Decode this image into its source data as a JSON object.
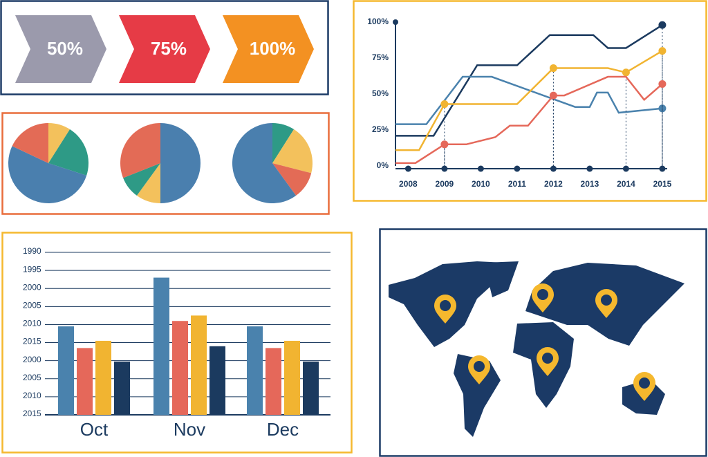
{
  "chart_data": [
    {
      "type": "chevron",
      "values": [
        50,
        75,
        100
      ],
      "value_labels": [
        "50%",
        "75%",
        "100%"
      ],
      "colors": [
        "#9b9aac",
        "#e63b46",
        "#f39122"
      ]
    },
    {
      "type": "pie",
      "values": [
        9,
        21,
        52,
        18
      ],
      "colors": [
        "#f3c15c",
        "#2e9a86",
        "#4a7fae",
        "#e36b56"
      ]
    },
    {
      "type": "pie",
      "values": [
        50,
        10,
        9,
        31
      ],
      "colors": [
        "#4a7fae",
        "#f3c15c",
        "#2e9a86",
        "#e36b56"
      ]
    },
    {
      "type": "pie",
      "values": [
        9,
        20,
        11,
        60
      ],
      "colors": [
        "#2e9a86",
        "#f3c15c",
        "#e36b56",
        "#4a7fae"
      ]
    },
    {
      "type": "line",
      "xlim": [
        2007.65,
        2015.23
      ],
      "xticks": [
        2008,
        2009,
        2010,
        2011,
        2012,
        2013,
        2014,
        2015
      ],
      "ylim": [
        0,
        100
      ],
      "yticks": [
        {
          "value": 0,
          "label": "0%"
        },
        {
          "value": 25,
          "label": "25%"
        },
        {
          "value": 50,
          "label": "50%"
        },
        {
          "value": 75,
          "label": "75%"
        },
        {
          "value": 100,
          "label": "100%"
        }
      ],
      "series": [
        {
          "color": "#1b3a5f",
          "x": [
            2007.65,
            2008.7,
            2009.9,
            2011,
            2011.9,
            2013.1,
            2013.5,
            2014,
            2015
          ],
          "values": [
            21,
            21,
            70,
            70,
            91,
            91,
            82,
            82,
            98
          ]
        },
        {
          "color": "#4a82ad",
          "x": [
            2007.65,
            2008.5,
            2009.5,
            2010.3,
            2012.6,
            2013,
            2013.2,
            2013.5,
            2013.8,
            2015
          ],
          "values": [
            29,
            29,
            62,
            62,
            41,
            41,
            51,
            51,
            37,
            40
          ]
        },
        {
          "color": "#f1b431",
          "x": [
            2007.65,
            2008.3,
            2009,
            2010,
            2011,
            2012,
            2013.5,
            2014,
            2015
          ],
          "values": [
            11,
            11,
            43,
            43,
            43,
            68,
            68,
            65,
            80
          ]
        },
        {
          "color": "#e5685a",
          "x": [
            2007.65,
            2008.2,
            2009,
            2009.6,
            2010.4,
            2010.8,
            2011.3,
            2012,
            2012.3,
            2013.5,
            2014,
            2014.5,
            2015
          ],
          "values": [
            2,
            2,
            15,
            15,
            20,
            28,
            28,
            49,
            49,
            62,
            62,
            46,
            57
          ]
        }
      ]
    },
    {
      "type": "bar",
      "categories": [
        "Oct",
        "Nov",
        "Dec"
      ],
      "ylim": [
        0,
        9
      ],
      "yticks": [
        {
          "value": 9,
          "label": "1990"
        },
        {
          "value": 8,
          "label": "1995"
        },
        {
          "value": 7,
          "label": "2000"
        },
        {
          "value": 6,
          "label": "2005"
        },
        {
          "value": 5,
          "label": "2010"
        },
        {
          "value": 4,
          "label": "2015"
        },
        {
          "value": 3,
          "label": "2000"
        },
        {
          "value": 2,
          "label": "2005"
        },
        {
          "value": 1,
          "label": "2010"
        },
        {
          "value": 0,
          "label": "2015"
        }
      ],
      "grid": true,
      "series": [
        {
          "color": "#4a82ad",
          "values": [
            4.9,
            7.6,
            4.9
          ]
        },
        {
          "color": "#e5685a",
          "values": [
            3.7,
            5.2,
            3.7
          ]
        },
        {
          "color": "#f1b431",
          "values": [
            4.1,
            5.5,
            4.1
          ]
        },
        {
          "color": "#1b3a5f",
          "values": [
            2.95,
            3.8,
            2.95
          ]
        }
      ]
    }
  ]
}
